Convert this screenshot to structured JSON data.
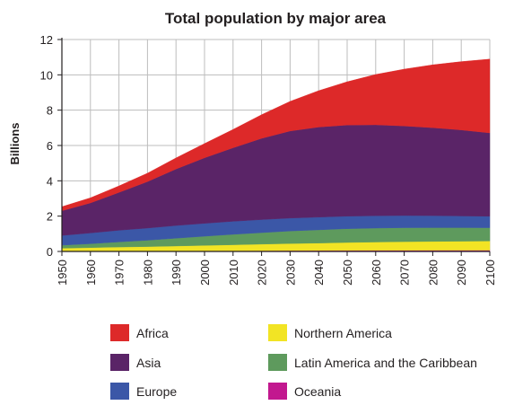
{
  "chart_data": {
    "type": "area",
    "stacked": true,
    "title": "Total population by major area",
    "xlabel": "",
    "ylabel": "Billions",
    "ylim": [
      0,
      12
    ],
    "yticks": [
      0,
      2,
      4,
      6,
      8,
      10,
      12
    ],
    "xlim": [
      1950,
      2100
    ],
    "xticks": [
      1950,
      1960,
      1970,
      1980,
      1990,
      2000,
      2010,
      2020,
      2030,
      2040,
      2050,
      2060,
      2070,
      2080,
      2090,
      2100
    ],
    "grid": true,
    "legend_position": "bottom",
    "x": [
      1950,
      1960,
      1970,
      1980,
      1990,
      2000,
      2010,
      2020,
      2030,
      2040,
      2050,
      2060,
      2070,
      2080,
      2090,
      2100
    ],
    "series": [
      {
        "name": "Oceania",
        "color": "#c2188f",
        "values": [
          0.013,
          0.016,
          0.02,
          0.023,
          0.027,
          0.031,
          0.037,
          0.043,
          0.048,
          0.053,
          0.057,
          0.061,
          0.064,
          0.067,
          0.069,
          0.072
        ]
      },
      {
        "name": "Northern America",
        "color": "#f2e424",
        "values": [
          0.17,
          0.2,
          0.23,
          0.25,
          0.28,
          0.31,
          0.34,
          0.37,
          0.4,
          0.42,
          0.45,
          0.47,
          0.49,
          0.5,
          0.51,
          0.52
        ]
      },
      {
        "name": "Latin America and the Caribbean",
        "color": "#5e9a5d",
        "values": [
          0.17,
          0.22,
          0.29,
          0.36,
          0.44,
          0.52,
          0.59,
          0.65,
          0.71,
          0.75,
          0.78,
          0.79,
          0.79,
          0.78,
          0.77,
          0.75
        ]
      },
      {
        "name": "Europe",
        "color": "#3b57a7",
        "values": [
          0.55,
          0.61,
          0.66,
          0.69,
          0.72,
          0.73,
          0.74,
          0.74,
          0.73,
          0.72,
          0.71,
          0.7,
          0.69,
          0.68,
          0.66,
          0.65
        ]
      },
      {
        "name": "Asia",
        "color": "#5a2467",
        "values": [
          1.4,
          1.7,
          2.14,
          2.63,
          3.2,
          3.71,
          4.16,
          4.6,
          4.93,
          5.1,
          5.16,
          5.15,
          5.07,
          4.98,
          4.87,
          4.72
        ]
      },
      {
        "name": "Africa",
        "color": "#dd2929",
        "values": [
          0.23,
          0.29,
          0.37,
          0.48,
          0.63,
          0.81,
          1.04,
          1.34,
          1.68,
          2.06,
          2.45,
          2.85,
          3.22,
          3.56,
          3.87,
          4.18
        ]
      }
    ]
  },
  "legend": {
    "items": [
      {
        "label": "Africa",
        "color": "#dd2929"
      },
      {
        "label": "Asia",
        "color": "#5a2467"
      },
      {
        "label": "Europe",
        "color": "#3b57a7"
      },
      {
        "label": "Northern America",
        "color": "#f2e424"
      },
      {
        "label": "Latin America and the Caribbean",
        "color": "#5e9a5d"
      },
      {
        "label": "Oceania",
        "color": "#c2188f"
      }
    ]
  },
  "colors": {
    "grid": "#bdbdbd",
    "axis": "#231f20",
    "text": "#231f20"
  }
}
